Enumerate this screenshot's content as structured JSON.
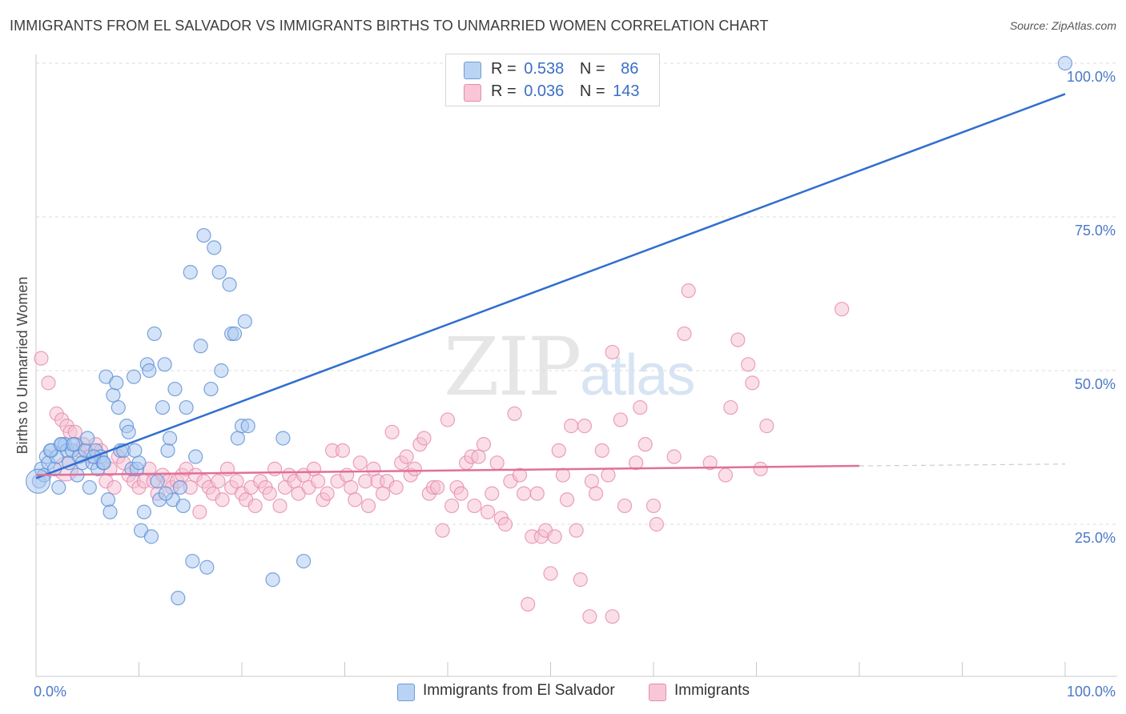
{
  "title": "IMMIGRANTS FROM EL SALVADOR VS IMMIGRANTS BIRTHS TO UNMARRIED WOMEN CORRELATION CHART",
  "source": "Source: ZipAtlas.com",
  "watermark": {
    "zip": "ZIP",
    "atlas": "atlas"
  },
  "legend": [
    {
      "r_label": "R =",
      "r_value": "0.538",
      "n_label": "N =",
      "n_value": "86"
    },
    {
      "r_label": "R =",
      "r_value": "0.036",
      "n_label": "N =",
      "n_value": "143"
    }
  ],
  "colors": {
    "blue_fill": "#a9c8ef",
    "blue_stroke": "#5b8fd6",
    "blue_line": "#2f6fcf",
    "pink_fill": "#f6bfd2",
    "pink_stroke": "#e68aab",
    "pink_line": "#e0709a",
    "grid": "#dcdcdc",
    "tick_label": "#4a78c8"
  },
  "chart_data": {
    "type": "scatter",
    "title": "IMMIGRANTS FROM EL SALVADOR VS IMMIGRANTS BIRTHS TO UNMARRIED WOMEN CORRELATION CHART",
    "xlabel": "",
    "ylabel": "Births to Unmarried Women",
    "xlim": [
      0,
      100
    ],
    "ylim": [
      0,
      103
    ],
    "x_tick_labels": [
      "0.0%",
      "100.0%"
    ],
    "y_tick_labels": [
      "25.0%",
      "50.0%",
      "75.0%",
      "100.0%"
    ],
    "y_ticks": [
      25,
      50,
      75,
      100
    ],
    "series": [
      {
        "name": "Immigrants from El Salvador",
        "r": 0.538,
        "n": 86,
        "trend": {
          "x0": 0,
          "y0": 32.5,
          "x1": 100,
          "y1": 95.0
        },
        "points": [
          [
            0.3,
            32
          ],
          [
            0.5,
            34
          ],
          [
            0.8,
            33
          ],
          [
            1.0,
            36
          ],
          [
            1.2,
            35
          ],
          [
            1.5,
            37
          ],
          [
            1.8,
            34
          ],
          [
            2.0,
            36
          ],
          [
            2.2,
            31
          ],
          [
            2.5,
            38
          ],
          [
            2.8,
            38
          ],
          [
            3.0,
            37
          ],
          [
            3.2,
            35
          ],
          [
            3.5,
            37
          ],
          [
            3.8,
            38
          ],
          [
            4.0,
            33
          ],
          [
            4.2,
            36
          ],
          [
            4.5,
            35
          ],
          [
            4.8,
            37
          ],
          [
            5.0,
            39
          ],
          [
            5.2,
            31
          ],
          [
            5.5,
            35
          ],
          [
            5.8,
            37
          ],
          [
            6.0,
            34
          ],
          [
            6.3,
            36
          ],
          [
            6.5,
            35
          ],
          [
            6.8,
            49
          ],
          [
            7.0,
            29
          ],
          [
            7.2,
            27
          ],
          [
            7.5,
            46
          ],
          [
            7.8,
            48
          ],
          [
            8.0,
            44
          ],
          [
            8.2,
            37
          ],
          [
            8.5,
            37
          ],
          [
            8.8,
            41
          ],
          [
            9.0,
            40
          ],
          [
            9.3,
            34
          ],
          [
            9.5,
            49
          ],
          [
            9.8,
            34
          ],
          [
            10.0,
            35
          ],
          [
            10.2,
            24
          ],
          [
            10.5,
            27
          ],
          [
            10.8,
            51
          ],
          [
            11.0,
            50
          ],
          [
            11.2,
            23
          ],
          [
            11.5,
            56
          ],
          [
            11.8,
            32
          ],
          [
            12.0,
            29
          ],
          [
            12.3,
            44
          ],
          [
            12.5,
            51
          ],
          [
            12.8,
            37
          ],
          [
            13.0,
            39
          ],
          [
            13.3,
            29
          ],
          [
            13.5,
            47
          ],
          [
            13.8,
            13
          ],
          [
            14.0,
            31
          ],
          [
            14.3,
            28
          ],
          [
            14.6,
            44
          ],
          [
            15.0,
            66
          ],
          [
            15.2,
            19
          ],
          [
            15.5,
            36
          ],
          [
            16.0,
            54
          ],
          [
            16.3,
            72
          ],
          [
            16.6,
            18
          ],
          [
            17.0,
            47
          ],
          [
            17.3,
            70
          ],
          [
            17.8,
            66
          ],
          [
            18.0,
            50
          ],
          [
            18.8,
            64
          ],
          [
            19.0,
            56
          ],
          [
            19.3,
            56
          ],
          [
            19.6,
            39
          ],
          [
            20.0,
            41
          ],
          [
            20.3,
            58
          ],
          [
            20.6,
            41
          ],
          [
            23.0,
            16
          ],
          [
            24.0,
            39
          ],
          [
            26.0,
            19
          ],
          [
            100.0,
            100
          ],
          [
            1.4,
            37
          ],
          [
            2.4,
            38
          ],
          [
            3.6,
            38
          ],
          [
            5.6,
            36
          ],
          [
            6.6,
            35
          ],
          [
            9.6,
            37
          ],
          [
            12.6,
            30
          ]
        ],
        "large_points": [
          [
            0.2,
            32
          ]
        ]
      },
      {
        "name": "Immigrants",
        "r": 0.036,
        "n": 143,
        "trend": {
          "x0": 0,
          "y0": 33.0,
          "x1": 80,
          "y1": 34.5,
          "dash_to_x": 100,
          "dash_to_y": 34.8
        },
        "points": [
          [
            0.5,
            52
          ],
          [
            1.2,
            48
          ],
          [
            2.0,
            43
          ],
          [
            2.5,
            42
          ],
          [
            3.0,
            41
          ],
          [
            3.3,
            40
          ],
          [
            3.8,
            40
          ],
          [
            4.2,
            37
          ],
          [
            4.6,
            38
          ],
          [
            5.2,
            36
          ],
          [
            5.8,
            38
          ],
          [
            6.3,
            37
          ],
          [
            6.8,
            32
          ],
          [
            7.2,
            34
          ],
          [
            7.6,
            31
          ],
          [
            8.0,
            36
          ],
          [
            8.5,
            35
          ],
          [
            9.0,
            33
          ],
          [
            9.5,
            32
          ],
          [
            10.0,
            31
          ],
          [
            10.5,
            32
          ],
          [
            11.0,
            34
          ],
          [
            11.4,
            32
          ],
          [
            11.8,
            30
          ],
          [
            12.3,
            33
          ],
          [
            12.8,
            32
          ],
          [
            13.2,
            31
          ],
          [
            13.7,
            32
          ],
          [
            14.2,
            33
          ],
          [
            14.6,
            34
          ],
          [
            15.0,
            31
          ],
          [
            15.5,
            33
          ],
          [
            15.9,
            27
          ],
          [
            16.3,
            32
          ],
          [
            16.8,
            31
          ],
          [
            17.2,
            30
          ],
          [
            17.7,
            32
          ],
          [
            18.1,
            29
          ],
          [
            18.6,
            34
          ],
          [
            19.0,
            31
          ],
          [
            19.5,
            32
          ],
          [
            20.0,
            30
          ],
          [
            20.4,
            29
          ],
          [
            20.9,
            31
          ],
          [
            21.3,
            28
          ],
          [
            21.8,
            32
          ],
          [
            22.3,
            31
          ],
          [
            22.7,
            30
          ],
          [
            23.2,
            34
          ],
          [
            23.7,
            28
          ],
          [
            24.2,
            31
          ],
          [
            24.6,
            33
          ],
          [
            25.1,
            32
          ],
          [
            25.5,
            30
          ],
          [
            26.0,
            33
          ],
          [
            26.5,
            31
          ],
          [
            27.0,
            34
          ],
          [
            27.4,
            32
          ],
          [
            27.9,
            29
          ],
          [
            28.3,
            30
          ],
          [
            28.8,
            37
          ],
          [
            29.3,
            32
          ],
          [
            29.8,
            37
          ],
          [
            30.2,
            33
          ],
          [
            30.6,
            31
          ],
          [
            31.0,
            29
          ],
          [
            31.5,
            35
          ],
          [
            32.0,
            32
          ],
          [
            32.3,
            28
          ],
          [
            32.8,
            34
          ],
          [
            33.2,
            32
          ],
          [
            33.7,
            30
          ],
          [
            34.1,
            32
          ],
          [
            34.6,
            40
          ],
          [
            35.0,
            31
          ],
          [
            35.5,
            35
          ],
          [
            36.0,
            36
          ],
          [
            36.4,
            33
          ],
          [
            36.8,
            34
          ],
          [
            37.3,
            38
          ],
          [
            37.7,
            39
          ],
          [
            38.2,
            30
          ],
          [
            38.6,
            31
          ],
          [
            39.0,
            31
          ],
          [
            39.5,
            24
          ],
          [
            40.0,
            42
          ],
          [
            40.4,
            28
          ],
          [
            40.9,
            31
          ],
          [
            41.3,
            30
          ],
          [
            41.8,
            35
          ],
          [
            42.3,
            36
          ],
          [
            42.6,
            28
          ],
          [
            43.0,
            36
          ],
          [
            43.5,
            38
          ],
          [
            43.9,
            27
          ],
          [
            44.3,
            30
          ],
          [
            44.8,
            35
          ],
          [
            45.2,
            26
          ],
          [
            45.6,
            25
          ],
          [
            46.1,
            32
          ],
          [
            46.5,
            43
          ],
          [
            47.0,
            33
          ],
          [
            47.4,
            30
          ],
          [
            47.8,
            12
          ],
          [
            48.2,
            23
          ],
          [
            48.7,
            30
          ],
          [
            49.1,
            23
          ],
          [
            49.5,
            24
          ],
          [
            50.0,
            17
          ],
          [
            50.4,
            23
          ],
          [
            50.8,
            37
          ],
          [
            51.2,
            33
          ],
          [
            51.6,
            29
          ],
          [
            52.0,
            41
          ],
          [
            52.5,
            24
          ],
          [
            52.9,
            16
          ],
          [
            53.3,
            41
          ],
          [
            54.0,
            32
          ],
          [
            54.4,
            30
          ],
          [
            55.0,
            37
          ],
          [
            55.6,
            33
          ],
          [
            56.0,
            53
          ],
          [
            56.8,
            42
          ],
          [
            57.2,
            28
          ],
          [
            58.3,
            35
          ],
          [
            58.7,
            44
          ],
          [
            59.2,
            38
          ],
          [
            60.0,
            28
          ],
          [
            60.3,
            25
          ],
          [
            62.0,
            36
          ],
          [
            63.0,
            56
          ],
          [
            65.5,
            35
          ],
          [
            67.0,
            33
          ],
          [
            67.5,
            44
          ],
          [
            68.2,
            55
          ],
          [
            69.2,
            51
          ],
          [
            69.6,
            48
          ],
          [
            70.4,
            34
          ],
          [
            71.0,
            41
          ],
          [
            78.3,
            60
          ],
          [
            53.8,
            10
          ],
          [
            56.0,
            10
          ],
          [
            63.4,
            63
          ]
        ],
        "large_points": [
          [
            2.9,
            34
          ]
        ]
      }
    ]
  },
  "bottom_legend": [
    {
      "label": "Immigrants from El Salvador"
    },
    {
      "label": "Immigrants"
    }
  ]
}
